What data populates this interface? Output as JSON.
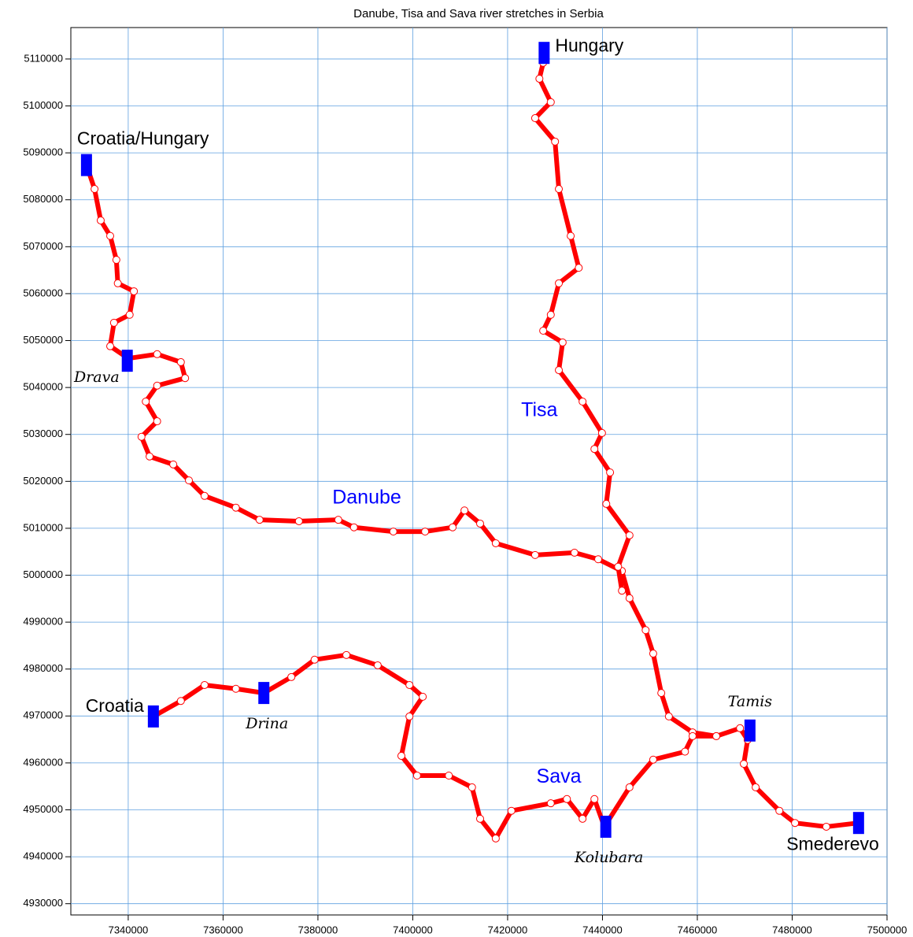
{
  "chart_data": {
    "type": "scatter",
    "title": "Danube, Tisa and Sava river stretches in Serbia",
    "xlim": [
      7327900,
      7500000
    ],
    "ylim": [
      4927600,
      5116700
    ],
    "xticks": [
      7340000,
      7360000,
      7380000,
      7400000,
      7420000,
      7440000,
      7460000,
      7480000,
      7500000
    ],
    "yticks": [
      4930000,
      4940000,
      4950000,
      4960000,
      4970000,
      4980000,
      4990000,
      5000000,
      5010000,
      5020000,
      5030000,
      5040000,
      5050000,
      5060000,
      5070000,
      5080000,
      5090000,
      5100000,
      5110000
    ],
    "grid": true,
    "grid_color": "#5fa0e0",
    "series": [
      {
        "color": "#ff0000",
        "x": [
          7331200,
          7332900,
          7334200,
          7336200,
          7337500,
          7337800,
          7341200,
          7340300,
          7337000,
          7336200,
          7340000,
          7346100,
          7351100,
          7352000,
          7346100,
          7343700,
          7346100,
          7342800,
          7344500,
          7349500,
          7352800,
          7356100,
          7362700,
          7367700,
          7376000,
          7384300,
          7387600,
          7395900,
          7402600,
          7408400,
          7410900,
          7414200,
          7417500,
          7425800,
          7434100,
          7439100,
          7444100,
          7445700,
          7449100,
          7450700,
          7452400,
          7454000,
          7459000,
          7464000,
          7469000,
          7470600,
          7469800,
          7472300,
          7477300,
          7480600,
          7487200,
          7493900
        ],
        "values": [
          5087400,
          5082300,
          5075600,
          5072300,
          5067200,
          5062200,
          5060500,
          5055500,
          5053800,
          5048800,
          5046200,
          5047100,
          5045400,
          5042000,
          5040400,
          5037000,
          5032800,
          5029500,
          5025300,
          5023600,
          5020200,
          5016900,
          5014400,
          5011800,
          5011500,
          5011800,
          5010200,
          5009300,
          5009300,
          5010200,
          5013800,
          5011000,
          5006800,
          5004300,
          5004800,
          5003400,
          5000900,
          4995100,
          4988300,
          4983300,
          4974900,
          4969900,
          4966500,
          4965700,
          4967400,
          4964900,
          4959800,
          4954800,
          4949800,
          4947200,
          4946400,
          4947200
        ]
      },
      {
        "color": "#ff0000",
        "x": [
          7427500,
          7426700,
          7429100,
          7425800,
          7430000,
          7430800,
          7433300,
          7435000,
          7430800,
          7429100,
          7427500,
          7431600,
          7430800,
          7435800,
          7439900,
          7438300,
          7441600,
          7440800,
          7445700,
          7443300,
          7444100
        ],
        "values": [
          5109200,
          5105800,
          5100800,
          5097400,
          5092400,
          5082300,
          5072300,
          5065500,
          5062200,
          5055500,
          5052100,
          5049600,
          5043700,
          5037000,
          5030300,
          5026900,
          5021900,
          5015200,
          5008500,
          5001800,
          4996700
        ]
      },
      {
        "color": "#ff0000",
        "x": [
          7345300,
          7351100,
          7356100,
          7362700,
          7368600,
          7374400,
          7379300,
          7386000,
          7392600,
          7399300,
          7402100,
          7399300,
          7397600,
          7400900,
          7407600,
          7412500,
          7414200,
          7417500,
          7420800,
          7429100,
          7432500,
          7435800,
          7438300,
          7440400,
          7445700,
          7450700,
          7457400,
          7459000,
          7464000
        ],
        "values": [
          4969900,
          4973200,
          4976600,
          4975800,
          4974900,
          4978300,
          4982000,
          4983000,
          4980800,
          4976600,
          4974100,
          4969900,
          4961500,
          4957300,
          4957300,
          4954800,
          4948100,
          4943900,
          4949800,
          4951400,
          4952300,
          4948100,
          4952300,
          4946400,
          4954800,
          4960700,
          4962400,
          4965700,
          4965700
        ]
      }
    ],
    "annotations": [
      {
        "text": "Danube",
        "x": 7390300,
        "y": 5016400
      },
      {
        "text": "Tisa",
        "x": 7426700,
        "y": 5035000
      },
      {
        "text": "Sava",
        "x": 7430800,
        "y": 4956900
      }
    ],
    "annotation_color": "#0000ff",
    "marker_color": "#0000ff",
    "markers": [
      {
        "label": "Hungary",
        "x": 7427700,
        "y": 5111300,
        "label_position": "right",
        "italic": false
      },
      {
        "label": "Croatia/Hungary",
        "x": 7331200,
        "y": 5087400,
        "label_position": "above",
        "italic": false
      },
      {
        "label": "Drava",
        "x": 7339800,
        "y": 5045700,
        "label_position": "below-left",
        "italic": true
      },
      {
        "label": "Tamis",
        "x": 7471100,
        "y": 4966900,
        "label_position": "above",
        "italic": true
      },
      {
        "label": "Croatia",
        "x": 7345300,
        "y": 4969900,
        "label_position": "left",
        "italic": false
      },
      {
        "label": "Drina",
        "x": 7368600,
        "y": 4974900,
        "label_position": "below",
        "italic": true
      },
      {
        "label": "Kolubara",
        "x": 7440700,
        "y": 4946400,
        "label_position": "below",
        "italic": true
      },
      {
        "label": "Smederevo",
        "x": 7494000,
        "y": 4947200,
        "label_position": "below-left",
        "italic": false
      }
    ]
  }
}
